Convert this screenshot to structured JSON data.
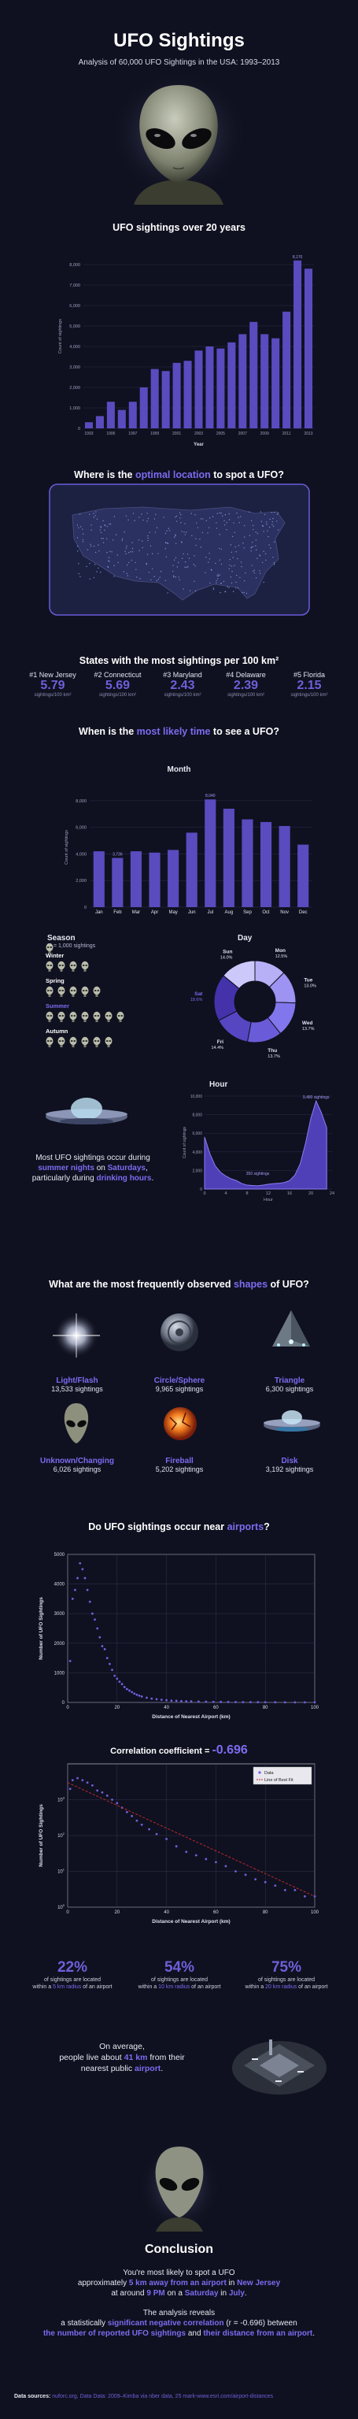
{
  "header": {
    "title": "UFO Sightings",
    "subtitle": "Analysis of 60,000 UFO Sightings in the USA: 1993–2013"
  },
  "yearly": {
    "title": "UFO sightings over 20 years"
  },
  "location": {
    "title_pre": "Where is the ",
    "title_hl": "optimal location",
    "title_post": " to spot a UFO?"
  },
  "states": {
    "title": "States with the most sightings per 100 km²",
    "items": [
      {
        "rank": "#1 New Jersey",
        "value": "5.79",
        "unit": "sightings/100 km²"
      },
      {
        "rank": "#2 Connecticut",
        "value": "5.69",
        "unit": "sightings/100 km²"
      },
      {
        "rank": "#3 Maryland",
        "value": "2.43",
        "unit": "sightings/100 km²"
      },
      {
        "rank": "#4 Delaware",
        "value": "2.39",
        "unit": "sightings/100 km²"
      },
      {
        "rank": "#5 Florida",
        "value": "2.15",
        "unit": "sightings/100 km²"
      }
    ]
  },
  "time": {
    "title_pre": "When is the ",
    "title_hl": "most likely time",
    "title_post": " to see a UFO?"
  },
  "month": {
    "title": "Month"
  },
  "season": {
    "title": "Season",
    "legend": "= 1,000 sightings",
    "rows": [
      {
        "name": "Winter",
        "count": 4
      },
      {
        "name": "Spring",
        "count": 5
      },
      {
        "name": "Summer",
        "count": 7
      },
      {
        "name": "Autumn",
        "count": 6
      }
    ]
  },
  "day": {
    "title": "Day"
  },
  "hour": {
    "title": "Hour",
    "annotation_low": "350 sightings",
    "annotation_high": "9,480 sightings"
  },
  "summary": {
    "line1": "Most UFO sightings occur during",
    "line2_hl": "summer nights",
    "line2_post": " on ",
    "line2_hl2": "Saturdays",
    "line2_end": ",",
    "line3_pre": "particularly during ",
    "line3_hl": "drinking hours",
    "line3_end": "."
  },
  "shapes": {
    "title_pre": "What are the most frequently observed ",
    "title_hl": "shapes",
    "title_post": " of UFO?",
    "items": [
      {
        "name": "Light/Flash",
        "count": "13,533 sightings",
        "icon": "light-flash-icon"
      },
      {
        "name": "Circle/Sphere",
        "count": "9,965 sightings",
        "icon": "circle-sphere-icon"
      },
      {
        "name": "Triangle",
        "count": "6,300 sightings",
        "icon": "triangle-icon"
      },
      {
        "name": "Unknown/Changing",
        "count": "6,026 sightings",
        "icon": "alien-icon"
      },
      {
        "name": "Fireball",
        "count": "5,202 sightings",
        "icon": "fireball-icon"
      },
      {
        "name": "Disk",
        "count": "3,192 sightings",
        "icon": "disk-icon"
      }
    ]
  },
  "airports": {
    "title_pre": "Do UFO sightings occur near ",
    "title_hl": "airports",
    "title_post": "?"
  },
  "correlation": {
    "label": "Correlation coefficient = ",
    "value": "-0.696",
    "legend_data": "Data",
    "legend_fit": "Line of Best Fit"
  },
  "stats": [
    {
      "pct": "22%",
      "line1": "of sightings are located",
      "line2_pre": "within a ",
      "line2_hl": "5 km radius",
      "line2_post": " of an airport"
    },
    {
      "pct": "54%",
      "line1": "of sightings are located",
      "line2_pre": "within a ",
      "line2_hl": "10 km radius",
      "line2_post": " of an airport"
    },
    {
      "pct": "75%",
      "line1": "of sightings are located",
      "line2_pre": "within a ",
      "line2_hl": "20 km radius",
      "line2_post": " of an airport"
    }
  ],
  "average": {
    "line1": "On average,",
    "line2_pre": "people live about ",
    "line2_hl": "41 km",
    "line2_post": " from their",
    "line3_pre": "nearest public ",
    "line3_hl": "airport",
    "line3_post": "."
  },
  "conclusion": {
    "title": "Conclusion",
    "l1": "You're most likely to spot a UFO",
    "l2_pre": "approximately ",
    "l2_hl": "5 km away from an airport",
    "l2_mid": " in ",
    "l2_hl2": "New Jersey",
    "l3_pre": "at around ",
    "l3_hl": "9 PM",
    "l3_mid": " on a ",
    "l3_hl2": "Saturday",
    "l3_mid2": " in ",
    "l3_hl3": "July",
    "l3_end": ".",
    "l4": "The analysis reveals",
    "l5_pre": "a statistically ",
    "l5_hl": "significant negative correlation",
    "l5_post": " (r = -0.696) between",
    "l6_hl": "the number of reported UFO sightings",
    "l6_mid": " and ",
    "l6_hl2": "their distance from an airport",
    "l6_end": "."
  },
  "footer": {
    "label": "Data sources:",
    "text": "nuforc.org, Data Data: 2009–Kimba via nber data, 25 mark-www.esri.com/airport-distances"
  },
  "colors": {
    "bg": "#0f1120",
    "accent": "#7b6cf0",
    "bar": "#5a4bbf",
    "fit": "#c0272d"
  },
  "chart_data": [
    {
      "type": "bar",
      "title": "UFO sightings over 20 years",
      "xlabel": "Year",
      "ylabel": "Count of sightings",
      "categories": [
        "1993",
        "1994",
        "1995",
        "1996",
        "1997",
        "1998",
        "1999",
        "2000",
        "2001",
        "2002",
        "2003",
        "2004",
        "2005",
        "2006",
        "2007",
        "2008",
        "2009",
        "2010",
        "2011",
        "2012",
        "2013"
      ],
      "values": [
        300,
        600,
        1300,
        900,
        1300,
        2000,
        2900,
        2800,
        3200,
        3300,
        3800,
        4000,
        3900,
        4200,
        4600,
        5200,
        4600,
        4400,
        5700,
        8200,
        7800
      ],
      "ylim": [
        0,
        9000
      ],
      "yticks": [
        0,
        1000,
        2000,
        3000,
        4000,
        5000,
        6000,
        7000,
        8000
      ],
      "top_label": "8,170"
    },
    {
      "type": "bar",
      "title": "Month",
      "xlabel": "",
      "ylabel": "Count of sightings",
      "categories": [
        "Jan",
        "Feb",
        "Mar",
        "Apr",
        "May",
        "Jun",
        "Jul",
        "Aug",
        "Sep",
        "Oct",
        "Nov",
        "Dec"
      ],
      "values": [
        4200,
        3700,
        4200,
        4100,
        4300,
        5600,
        8100,
        7400,
        6600,
        6400,
        6100,
        4700
      ],
      "ylim": [
        0,
        9000
      ],
      "yticks": [
        0,
        2000,
        4000,
        6000,
        8000
      ],
      "top_label": "8,040",
      "low_label": "3,736"
    },
    {
      "type": "pie",
      "title": "Day",
      "labels": [
        "Mon",
        "Tue",
        "Wed",
        "Thu",
        "Fri",
        "Sat",
        "Sun"
      ],
      "values": [
        12.5,
        13.0,
        13.7,
        13.7,
        14.4,
        18.6,
        14.0
      ],
      "display": [
        "12.5%",
        "13.0%",
        "13.7%",
        "13.7%",
        "14.4%",
        "18.6%",
        "14.0%"
      ]
    },
    {
      "type": "area",
      "title": "Hour",
      "xlabel": "Hour",
      "ylabel": "Count of sightings",
      "x": [
        0,
        1,
        2,
        3,
        4,
        5,
        6,
        7,
        8,
        9,
        10,
        11,
        12,
        13,
        14,
        15,
        16,
        17,
        18,
        19,
        20,
        21,
        22,
        23
      ],
      "y": [
        5600,
        3800,
        2500,
        1800,
        1400,
        1100,
        900,
        600,
        420,
        380,
        350,
        420,
        520,
        580,
        620,
        700,
        900,
        1500,
        2700,
        4900,
        7600,
        9480,
        8200,
        6600
      ],
      "ylim": [
        0,
        10000
      ],
      "yticks": [
        0,
        2000,
        4000,
        6000,
        8000,
        10000
      ],
      "xticks": [
        0,
        4,
        8,
        12,
        16,
        20,
        24
      ]
    },
    {
      "type": "scatter",
      "title": "",
      "xlabel": "Distance of Nearest Airport (km)",
      "ylabel": "Number of UFO Sightings",
      "xlim": [
        0,
        100
      ],
      "ylim": [
        0,
        5000
      ],
      "xticks": [
        0,
        20,
        40,
        60,
        80,
        100
      ],
      "yticks": [
        0,
        1000,
        2000,
        3000,
        4000,
        5000
      ],
      "points": [
        [
          1,
          1400
        ],
        [
          2,
          3500
        ],
        [
          3,
          3800
        ],
        [
          4,
          4200
        ],
        [
          5,
          4700
        ],
        [
          6,
          4500
        ],
        [
          7,
          4200
        ],
        [
          8,
          3800
        ],
        [
          9,
          3400
        ],
        [
          10,
          3000
        ],
        [
          11,
          2800
        ],
        [
          12,
          2500
        ],
        [
          13,
          2200
        ],
        [
          14,
          1900
        ],
        [
          15,
          1800
        ],
        [
          16,
          1500
        ],
        [
          17,
          1300
        ],
        [
          18,
          1100
        ],
        [
          19,
          900
        ],
        [
          20,
          800
        ],
        [
          21,
          700
        ],
        [
          22,
          620
        ],
        [
          23,
          520
        ],
        [
          24,
          450
        ],
        [
          25,
          400
        ],
        [
          26,
          350
        ],
        [
          27,
          300
        ],
        [
          28,
          260
        ],
        [
          29,
          230
        ],
        [
          30,
          200
        ],
        [
          32,
          160
        ],
        [
          34,
          130
        ],
        [
          36,
          110
        ],
        [
          38,
          90
        ],
        [
          40,
          75
        ],
        [
          42,
          60
        ],
        [
          44,
          55
        ],
        [
          46,
          45
        ],
        [
          48,
          40
        ],
        [
          50,
          35
        ],
        [
          53,
          30
        ],
        [
          56,
          25
        ],
        [
          59,
          20
        ],
        [
          62,
          18
        ],
        [
          65,
          15
        ],
        [
          68,
          12
        ],
        [
          71,
          10
        ],
        [
          74,
          9
        ],
        [
          77,
          8
        ],
        [
          80,
          6
        ],
        [
          84,
          5
        ],
        [
          88,
          4
        ],
        [
          92,
          3
        ],
        [
          96,
          3
        ],
        [
          100,
          2
        ]
      ]
    },
    {
      "type": "scatter",
      "title": "Correlation coefficient = -0.696",
      "xlabel": "Distance of Nearest Airport (km)",
      "ylabel": "Number of UFO Sightings",
      "xlim": [
        0,
        100
      ],
      "yscale": "log",
      "ylim": [
        1,
        10000
      ],
      "xticks": [
        0,
        20,
        40,
        60,
        80,
        100
      ],
      "yticks": [
        1,
        10,
        100,
        1000
      ],
      "points": [
        [
          1,
          2000
        ],
        [
          2,
          3500
        ],
        [
          4,
          4000
        ],
        [
          6,
          3500
        ],
        [
          8,
          3000
        ],
        [
          10,
          2500
        ],
        [
          12,
          1800
        ],
        [
          14,
          1600
        ],
        [
          16,
          1300
        ],
        [
          18,
          1000
        ],
        [
          20,
          800
        ],
        [
          22,
          600
        ],
        [
          24,
          450
        ],
        [
          26,
          350
        ],
        [
          28,
          260
        ],
        [
          30,
          200
        ],
        [
          33,
          150
        ],
        [
          36,
          110
        ],
        [
          40,
          80
        ],
        [
          44,
          50
        ],
        [
          48,
          35
        ],
        [
          52,
          28
        ],
        [
          56,
          22
        ],
        [
          60,
          18
        ],
        [
          64,
          14
        ],
        [
          68,
          10
        ],
        [
          72,
          8
        ],
        [
          76,
          6
        ],
        [
          80,
          5
        ],
        [
          84,
          4
        ],
        [
          88,
          3
        ],
        [
          92,
          3
        ],
        [
          96,
          2
        ],
        [
          100,
          2
        ]
      ],
      "fit": [
        [
          0,
          3000
        ],
        [
          100,
          2
        ]
      ]
    }
  ]
}
